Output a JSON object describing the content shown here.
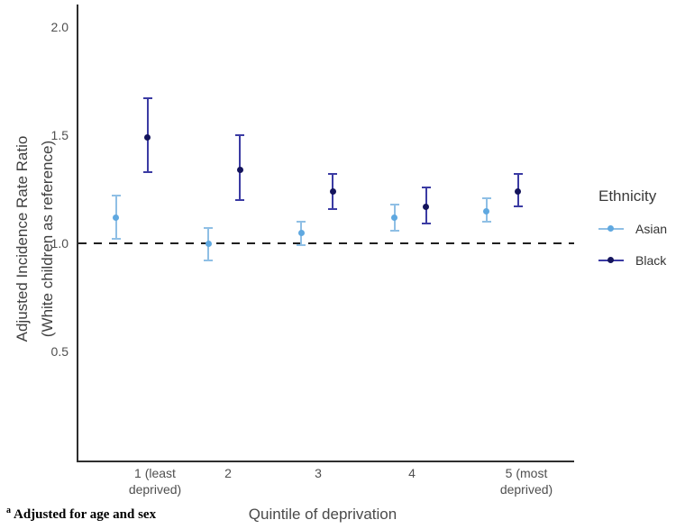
{
  "figure": {
    "background": "#ffffff",
    "ylabel_line1": "Adjusted Incidence Rate Ratio",
    "ylabel_line2": "(White children as reference)",
    "xlabel": "Quintile of deprivation",
    "footnote_marker": "a",
    "footnote_text": "Adjusted for age and sex"
  },
  "legend": {
    "title": "Ethnicity",
    "position": "right"
  },
  "chart_data": {
    "type": "pointrange",
    "title": "",
    "xlabel": "Quintile of deprivation",
    "ylabel": "Adjusted Incidence Rate Ratio (White children as reference)",
    "categories": [
      "1 (least\ndeprived)",
      "2",
      "3",
      "4",
      "5 (most\ndeprived)"
    ],
    "yticks": [
      0.5,
      1.0,
      1.5,
      2.0
    ],
    "ylim": [
      0,
      2.1
    ],
    "grid": false,
    "reference_line": 1.0,
    "reference_line_style": "dashed",
    "legend_position": "right",
    "axis_color": "#2e2e2e",
    "series": [
      {
        "name": "Asian",
        "line_color": "#8FBFE5",
        "point_color": "#5FA8E0",
        "values": [
          1.12,
          1.0,
          1.05,
          1.12,
          1.15
        ],
        "ci_low": [
          1.02,
          0.92,
          0.99,
          1.06,
          1.1
        ],
        "ci_high": [
          1.22,
          1.07,
          1.1,
          1.18,
          1.21
        ]
      },
      {
        "name": "Black",
        "line_color": "#3B3BA3",
        "point_color": "#14145C",
        "values": [
          1.49,
          1.34,
          1.24,
          1.17,
          1.24
        ],
        "ci_low": [
          1.33,
          1.2,
          1.16,
          1.09,
          1.17
        ],
        "ci_high": [
          1.67,
          1.5,
          1.32,
          1.26,
          1.32
        ]
      }
    ]
  }
}
